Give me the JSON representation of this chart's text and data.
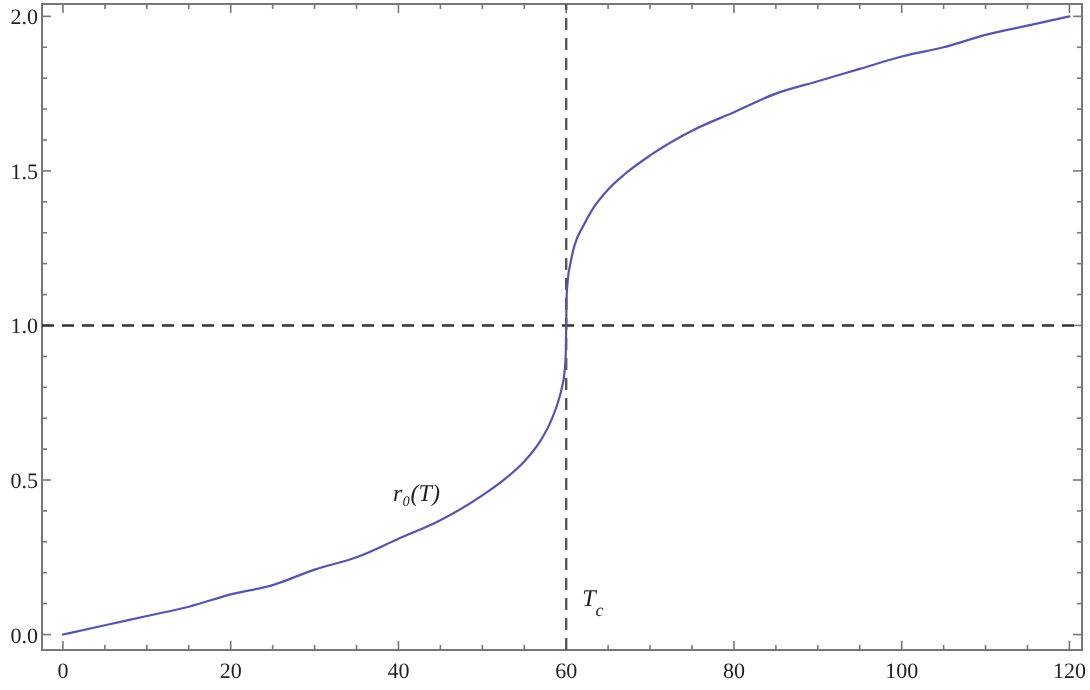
{
  "chart_data": {
    "type": "line",
    "x": [
      0,
      5,
      10,
      15,
      20,
      25,
      30,
      35,
      40,
      45,
      50,
      53,
      55,
      57,
      58,
      59,
      59.5,
      59.8,
      59.95,
      60,
      60.05,
      60.2,
      60.5,
      61,
      62,
      63,
      65,
      67,
      70,
      75,
      80,
      85,
      90,
      95,
      100,
      105,
      110,
      115,
      120
    ],
    "series": [
      {
        "color": "#5555b0",
        "values": [
          0,
          0.03,
          0.06,
          0.09,
          0.13,
          0.16,
          0.21,
          0.25,
          0.31,
          0.37,
          0.45,
          0.51,
          0.56,
          0.63,
          0.68,
          0.75,
          0.8,
          0.85,
          0.91,
          1,
          1.09,
          1.15,
          1.2,
          1.26,
          1.32,
          1.37,
          1.44,
          1.49,
          1.55,
          1.63,
          1.69,
          1.75,
          1.79,
          1.83,
          1.87,
          1.9,
          1.94,
          1.97,
          2
        ]
      }
    ],
    "xlim": [
      -2.5,
      121.5
    ],
    "ylim": [
      -0.05,
      2.04
    ],
    "xticks": [
      0,
      {
        "value": 5,
        "label": null
      },
      {
        "value": 10,
        "label": null
      },
      {
        "value": 15,
        "label": null
      },
      20,
      {
        "value": 25,
        "label": null
      },
      {
        "value": 30,
        "label": null
      },
      {
        "value": 35,
        "label": null
      },
      40,
      {
        "value": 45,
        "label": null
      },
      {
        "value": 50,
        "label": null
      },
      {
        "value": 55,
        "label": null
      },
      60,
      {
        "value": 65,
        "label": null
      },
      {
        "value": 70,
        "label": null
      },
      {
        "value": 75,
        "label": null
      },
      80,
      {
        "value": 85,
        "label": null
      },
      {
        "value": 90,
        "label": null
      },
      {
        "value": 95,
        "label": null
      },
      100,
      {
        "value": 105,
        "label": null
      },
      {
        "value": 110,
        "label": null
      },
      {
        "value": 115,
        "label": null
      },
      120
    ],
    "yticks": [
      {
        "value": 0,
        "label": "0.0"
      },
      {
        "value": 0.1,
        "label": null
      },
      {
        "value": 0.2,
        "label": null
      },
      {
        "value": 0.3,
        "label": null
      },
      {
        "value": 0.4,
        "label": null
      },
      {
        "value": 0.5,
        "label": "0.5"
      },
      {
        "value": 0.6,
        "label": null
      },
      {
        "value": 0.7,
        "label": null
      },
      {
        "value": 0.8,
        "label": null
      },
      {
        "value": 0.9,
        "label": null
      },
      {
        "value": 1,
        "label": "1.0"
      },
      {
        "value": 1.1,
        "label": null
      },
      {
        "value": 1.2,
        "label": null
      },
      {
        "value": 1.3,
        "label": null
      },
      {
        "value": 1.4,
        "label": null
      },
      {
        "value": 1.5,
        "label": "1.5"
      },
      {
        "value": 1.6,
        "label": null
      },
      {
        "value": 1.7,
        "label": null
      },
      {
        "value": 1.8,
        "label": null
      },
      {
        "value": 1.9,
        "label": null
      },
      {
        "value": 2,
        "label": "2.0"
      }
    ],
    "ref_lines": [
      {
        "axis": "x",
        "value": 60,
        "label": "T$_{c}$",
        "color": "#555555",
        "line_style": "dashed"
      },
      {
        "axis": "y",
        "value": 1,
        "label": null,
        "color": "#333333",
        "line_style": "dashed"
      }
    ],
    "annotations": [
      "r₀(T)"
    ],
    "grid": false,
    "marker": "none",
    "line_style": "solid"
  }
}
